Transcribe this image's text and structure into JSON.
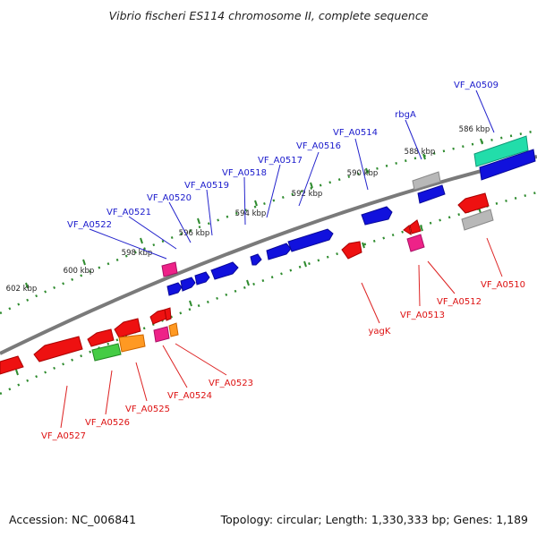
{
  "title": "Vibrio fischeri ES114 chromosome II, complete sequence",
  "footer": {
    "accession": "Accession: NC_006841",
    "summary": "Topology: circular; Length: 1,330,333 bp; Genes: 1,189"
  },
  "colors": {
    "backbone": "#7a7a7a",
    "scale_dots": "#2e8b2e",
    "forward_label": "#1a1acc",
    "reverse_label": "#dd1111",
    "blue": "#1111dd",
    "red": "#ee1111",
    "magenta": "#ee2288",
    "gray": "#b8b8b8",
    "teal": "#22ddaa",
    "green": "#44cc44",
    "orange": "#ff9922"
  },
  "ticks": [
    "586 kbp",
    "588 kbp",
    "590 kbp",
    "592 kbp",
    "594 kbp",
    "596 kbp",
    "598 kbp",
    "600 kbp",
    "602 kbp"
  ],
  "forward_labels": [
    "VF_A0509",
    "rbgA",
    "VF_A0514",
    "VF_A0516",
    "VF_A0517",
    "VF_A0518",
    "VF_A0519",
    "VF_A0520",
    "VF_A0521",
    "VF_A0522"
  ],
  "reverse_labels": [
    "VF_A0510",
    "VF_A0512",
    "VF_A0513",
    "yagK",
    "VF_A0523",
    "VF_A0524",
    "VF_A0525",
    "VF_A0526",
    "VF_A0527"
  ]
}
